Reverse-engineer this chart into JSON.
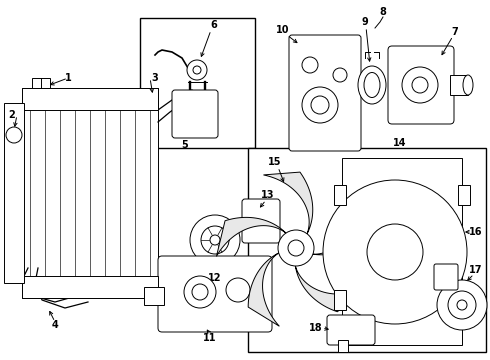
{
  "bg_color": "#ffffff",
  "lc": "#000000",
  "lw": 0.7,
  "figsize": [
    4.9,
    3.6
  ],
  "dpi": 100,
  "xlim": [
    0,
    490
  ],
  "ylim": [
    0,
    360
  ]
}
